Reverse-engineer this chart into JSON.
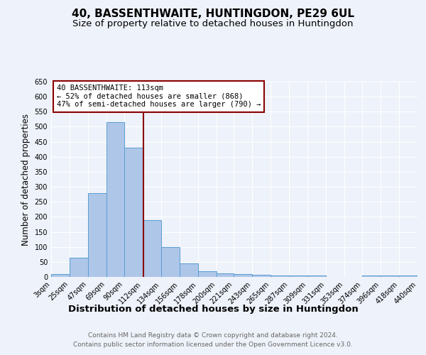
{
  "title": "40, BASSENTHWAITE, HUNTINGDON, PE29 6UL",
  "subtitle": "Size of property relative to detached houses in Huntingdon",
  "xlabel": "Distribution of detached houses by size in Huntingdon",
  "ylabel": "Number of detached properties",
  "footnote1": "Contains HM Land Registry data © Crown copyright and database right 2024.",
  "footnote2": "Contains public sector information licensed under the Open Government Licence v3.0.",
  "annotation_line1": "40 BASSENTHWAITE: 113sqm",
  "annotation_line2": "← 52% of detached houses are smaller (868)",
  "annotation_line3": "47% of semi-detached houses are larger (790) →",
  "property_size": 113,
  "bin_edges": [
    3,
    25,
    47,
    69,
    90,
    112,
    134,
    156,
    178,
    200,
    221,
    243,
    265,
    287,
    309,
    331,
    353,
    374,
    396,
    418,
    440
  ],
  "bar_heights": [
    10,
    65,
    280,
    515,
    430,
    190,
    100,
    45,
    18,
    12,
    9,
    6,
    5,
    5,
    5,
    0,
    0,
    5,
    5,
    5
  ],
  "bar_color": "#aec6e8",
  "bar_edge_color": "#5a9fd4",
  "vline_color": "#8b0000",
  "annotation_box_color": "#8b0000",
  "background_color": "#eef2fa",
  "grid_color": "#ffffff",
  "ylim": [
    0,
    650
  ],
  "yticks": [
    0,
    50,
    100,
    150,
    200,
    250,
    300,
    350,
    400,
    450,
    500,
    550,
    600,
    650
  ],
  "title_fontsize": 11,
  "subtitle_fontsize": 9.5,
  "xlabel_fontsize": 9.5,
  "ylabel_fontsize": 8.5,
  "tick_fontsize": 7,
  "annotation_fontsize": 7.5,
  "footnote_fontsize": 6.5
}
